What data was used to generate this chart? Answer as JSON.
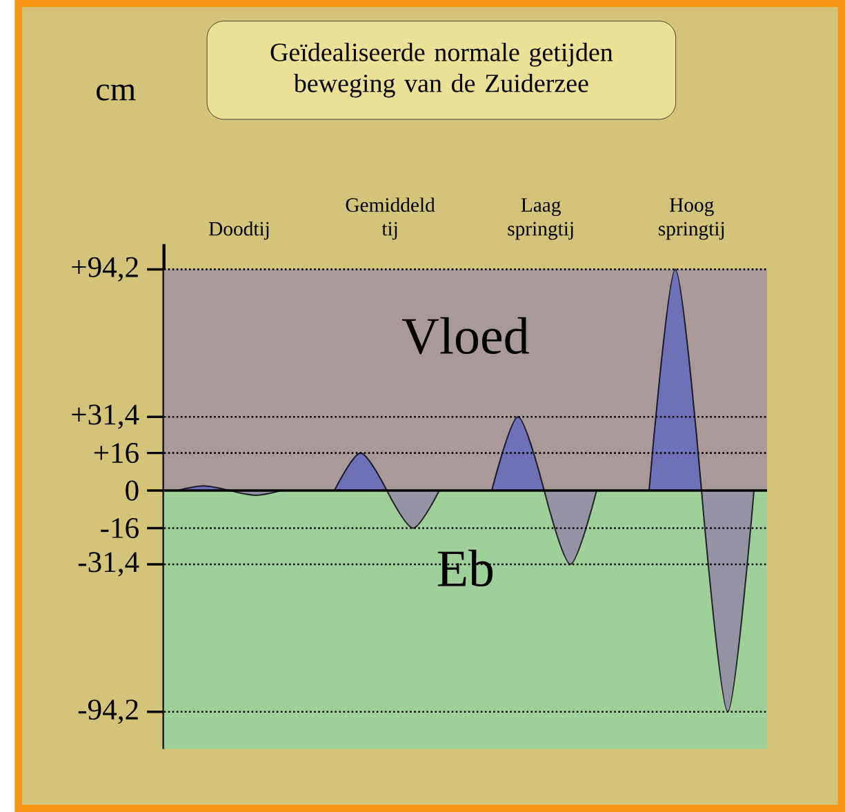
{
  "chart_data": {
    "type": "area",
    "title": "Geïdealiseerde normale getijden beweging van de Zuiderzee",
    "ylabel": "cm",
    "categories": [
      null,
      null,
      null,
      null,
      null,
      null,
      null,
      null,
      null,
      null,
      null,
      null,
      null,
      null,
      null,
      null,
      null,
      null,
      null,
      null,
      null,
      null,
      null
    ],
    "ylim": [
      -110,
      105
    ],
    "yticks": [
      {
        "value": 94.2,
        "label": "+94,2"
      },
      {
        "value": 31.4,
        "label": "+31,4"
      },
      {
        "value": 16,
        "label": "+16"
      },
      {
        "value": 0,
        "label": "0"
      },
      {
        "value": -16,
        "label": "-16"
      },
      {
        "value": -31.4,
        "label": "-31,4"
      },
      {
        "value": -94.2,
        "label": "-94,2"
      }
    ],
    "tick_labels": "y",
    "series": [
      {
        "color": "#7070b8",
        "values": [
          0,
          2,
          0,
          null,
          null,
          null,
          0,
          16,
          0,
          null,
          null,
          null,
          0,
          31.4,
          0,
          null,
          null,
          null,
          0,
          94.2,
          0,
          null,
          null
        ]
      },
      {
        "color": "#9494a4",
        "values": [
          null,
          null,
          0,
          -2,
          0,
          null,
          null,
          null,
          0,
          -16,
          0,
          null,
          null,
          null,
          0,
          -31.4,
          0,
          null,
          null,
          null,
          0,
          -94.2,
          0
        ]
      }
    ],
    "bands": [
      {
        "axis": "y",
        "from": 0,
        "to": 94.2,
        "label": "Vloed",
        "color": "#a89a98"
      },
      {
        "axis": "y",
        "from": -110,
        "to": 0,
        "label": "Eb",
        "color": "#a0d09a"
      }
    ],
    "ref_lines": [
      {
        "axis": "y",
        "value": 94.2,
        "line_style": "dotted"
      },
      {
        "axis": "y",
        "value": 31.4,
        "line_style": "dotted"
      },
      {
        "axis": "y",
        "value": 16,
        "line_style": "dotted"
      },
      {
        "axis": "y",
        "value": 0,
        "line_style": "solid"
      },
      {
        "axis": "y",
        "value": -16,
        "line_style": "dotted"
      },
      {
        "axis": "y",
        "value": -31.4,
        "line_style": "dotted"
      },
      {
        "axis": "y",
        "value": -94.2,
        "line_style": "dotted"
      }
    ],
    "annotations": [
      "Doodtij",
      "Gemiddeld tij",
      "Laag springtij",
      "Hoog springtij"
    ]
  }
}
